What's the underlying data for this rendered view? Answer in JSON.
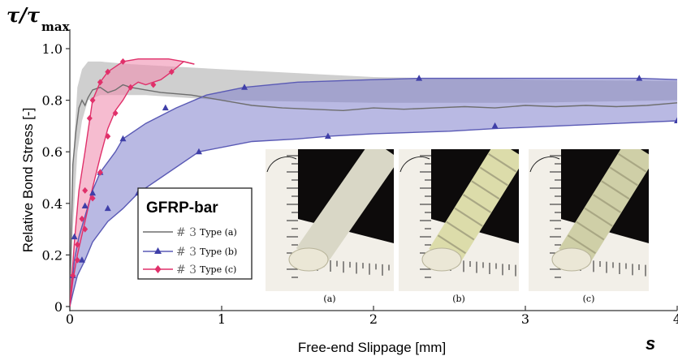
{
  "chart_data": {
    "type": "line",
    "title": "",
    "y_symbol": "τ/τ",
    "y_symbol_sub": "max",
    "x_symbol": "s",
    "xlabel": "Free-end Slippage [mm]",
    "ylabel": "Relative Bond Stress [-]",
    "xlim": [
      0,
      4
    ],
    "ylim": [
      0,
      1.05
    ],
    "x_ticks": [
      0,
      1,
      2,
      3,
      4
    ],
    "y_ticks": [
      0,
      0.2,
      0.4,
      0.6,
      0.8,
      1.0
    ],
    "x_tick_labels": [
      "0",
      "1",
      "2",
      "3",
      "4"
    ],
    "y_tick_labels": [
      "0",
      "0.2",
      "0.4",
      "0.6",
      "0.8",
      "1.0"
    ],
    "grid": false,
    "legend": {
      "title": "GFRP-bar",
      "placement": "lower-left",
      "entries": [
        {
          "symbol": "# 3",
          "label": "Type (a)"
        },
        {
          "symbol": "# 3",
          "label": "Type (b)"
        },
        {
          "symbol": "# 3",
          "label": "Type (c)"
        }
      ]
    },
    "series": [
      {
        "key": "a",
        "color": "#6e6e6e",
        "band_color": "#a8a8a8",
        "marker": "none",
        "values": [
          [
            0,
            0
          ],
          [
            0.01,
            0.3
          ],
          [
            0.02,
            0.55
          ],
          [
            0.04,
            0.68
          ],
          [
            0.06,
            0.77
          ],
          [
            0.08,
            0.8
          ],
          [
            0.1,
            0.78
          ],
          [
            0.12,
            0.81
          ],
          [
            0.15,
            0.84
          ],
          [
            0.2,
            0.85
          ],
          [
            0.25,
            0.83
          ],
          [
            0.3,
            0.84
          ],
          [
            0.35,
            0.86
          ],
          [
            0.4,
            0.85
          ],
          [
            0.5,
            0.84
          ],
          [
            0.6,
            0.83
          ],
          [
            0.8,
            0.82
          ],
          [
            1.0,
            0.8
          ],
          [
            1.2,
            0.78
          ],
          [
            1.4,
            0.77
          ],
          [
            1.6,
            0.765
          ],
          [
            1.8,
            0.76
          ],
          [
            2.0,
            0.77
          ],
          [
            2.2,
            0.765
          ],
          [
            2.4,
            0.77
          ],
          [
            2.6,
            0.775
          ],
          [
            2.8,
            0.77
          ],
          [
            3.0,
            0.78
          ],
          [
            3.2,
            0.775
          ],
          [
            3.4,
            0.78
          ],
          [
            3.6,
            0.775
          ],
          [
            3.8,
            0.78
          ],
          [
            4.0,
            0.79
          ]
        ],
        "band_upper": [
          [
            0,
            0
          ],
          [
            0.02,
            0.55
          ],
          [
            0.05,
            0.85
          ],
          [
            0.08,
            0.92
          ],
          [
            0.12,
            0.95
          ],
          [
            0.2,
            0.95
          ],
          [
            0.4,
            0.94
          ],
          [
            1.0,
            0.92
          ],
          [
            2.0,
            0.89
          ],
          [
            3.0,
            0.88
          ],
          [
            4.0,
            0.875
          ]
        ],
        "band_lower": [
          [
            0,
            0
          ],
          [
            0.02,
            0.3
          ],
          [
            0.05,
            0.6
          ],
          [
            0.08,
            0.72
          ],
          [
            0.12,
            0.8
          ],
          [
            0.2,
            0.82
          ],
          [
            0.5,
            0.82
          ],
          [
            1.0,
            0.8
          ],
          [
            2.0,
            0.79
          ],
          [
            3.0,
            0.79
          ],
          [
            4.0,
            0.8
          ]
        ]
      },
      {
        "key": "b",
        "color": "#5a5ab5",
        "band_color": "#7f7fcc",
        "marker": "triangle",
        "upper": [
          [
            0,
            0
          ],
          [
            0.03,
            0.18
          ],
          [
            0.06,
            0.27
          ],
          [
            0.1,
            0.35
          ],
          [
            0.15,
            0.45
          ],
          [
            0.2,
            0.52
          ],
          [
            0.3,
            0.6
          ],
          [
            0.35,
            0.65
          ],
          [
            0.5,
            0.71
          ],
          [
            0.7,
            0.77
          ],
          [
            0.9,
            0.82
          ],
          [
            1.15,
            0.85
          ],
          [
            1.5,
            0.87
          ],
          [
            2.0,
            0.88
          ],
          [
            2.3,
            0.885
          ],
          [
            2.8,
            0.885
          ],
          [
            3.2,
            0.885
          ],
          [
            3.75,
            0.885
          ],
          [
            4.0,
            0.88
          ]
        ],
        "lower": [
          [
            0,
            0
          ],
          [
            0.02,
            0.05
          ],
          [
            0.05,
            0.12
          ],
          [
            0.1,
            0.18
          ],
          [
            0.15,
            0.25
          ],
          [
            0.25,
            0.33
          ],
          [
            0.35,
            0.38
          ],
          [
            0.45,
            0.44
          ],
          [
            0.6,
            0.5
          ],
          [
            0.85,
            0.6
          ],
          [
            1.2,
            0.64
          ],
          [
            1.5,
            0.65
          ],
          [
            1.7,
            0.66
          ],
          [
            2.0,
            0.67
          ],
          [
            2.5,
            0.68
          ],
          [
            2.8,
            0.69
          ],
          [
            3.2,
            0.7
          ],
          [
            3.6,
            0.71
          ],
          [
            4.0,
            0.72
          ]
        ],
        "marker_points": [
          [
            0.03,
            0.27
          ],
          [
            0.1,
            0.39
          ],
          [
            0.15,
            0.44
          ],
          [
            0.2,
            0.52
          ],
          [
            0.35,
            0.65
          ],
          [
            0.63,
            0.77
          ],
          [
            1.15,
            0.85
          ],
          [
            2.3,
            0.885
          ],
          [
            3.75,
            0.885
          ],
          [
            0.02,
            0.12
          ],
          [
            0.08,
            0.18
          ],
          [
            0.25,
            0.38
          ],
          [
            0.45,
            0.44
          ],
          [
            0.85,
            0.6
          ],
          [
            1.7,
            0.66
          ],
          [
            2.8,
            0.7
          ],
          [
            4.0,
            0.72
          ]
        ]
      },
      {
        "key": "c",
        "color": "#e0306a",
        "band_color": "#f08fb0",
        "marker": "diamond",
        "upper": [
          [
            0,
            0
          ],
          [
            0.03,
            0.25
          ],
          [
            0.06,
            0.45
          ],
          [
            0.1,
            0.6
          ],
          [
            0.13,
            0.72
          ],
          [
            0.15,
            0.8
          ],
          [
            0.2,
            0.87
          ],
          [
            0.25,
            0.91
          ],
          [
            0.35,
            0.95
          ],
          [
            0.45,
            0.96
          ],
          [
            0.55,
            0.96
          ],
          [
            0.65,
            0.96
          ],
          [
            0.75,
            0.95
          ],
          [
            0.82,
            0.94
          ]
        ],
        "lower": [
          [
            0,
            0
          ],
          [
            0.02,
            0.1
          ],
          [
            0.05,
            0.2
          ],
          [
            0.1,
            0.33
          ],
          [
            0.15,
            0.46
          ],
          [
            0.2,
            0.58
          ],
          [
            0.25,
            0.69
          ],
          [
            0.3,
            0.76
          ],
          [
            0.35,
            0.8
          ],
          [
            0.4,
            0.85
          ],
          [
            0.45,
            0.87
          ],
          [
            0.5,
            0.86
          ],
          [
            0.6,
            0.88
          ],
          [
            0.67,
            0.91
          ],
          [
            0.75,
            0.95
          ],
          [
            0.82,
            0.94
          ]
        ],
        "marker_points": [
          [
            0.05,
            0.24
          ],
          [
            0.08,
            0.34
          ],
          [
            0.1,
            0.45
          ],
          [
            0.13,
            0.73
          ],
          [
            0.15,
            0.8
          ],
          [
            0.2,
            0.87
          ],
          [
            0.25,
            0.91
          ],
          [
            0.35,
            0.95
          ],
          [
            0.02,
            0.12
          ],
          [
            0.05,
            0.18
          ],
          [
            0.1,
            0.3
          ],
          [
            0.15,
            0.42
          ],
          [
            0.2,
            0.52
          ],
          [
            0.25,
            0.66
          ],
          [
            0.3,
            0.75
          ],
          [
            0.4,
            0.85
          ],
          [
            0.55,
            0.86
          ],
          [
            0.67,
            0.91
          ]
        ]
      }
    ],
    "photos": [
      {
        "caption": "(a)",
        "bar_color": "#d9d7c6",
        "ribbed": false
      },
      {
        "caption": "(b)",
        "bar_color": "#dcdcaa",
        "ribbed": true
      },
      {
        "caption": "(c)",
        "bar_color": "#cfcfa7",
        "ribbed": true
      }
    ]
  }
}
